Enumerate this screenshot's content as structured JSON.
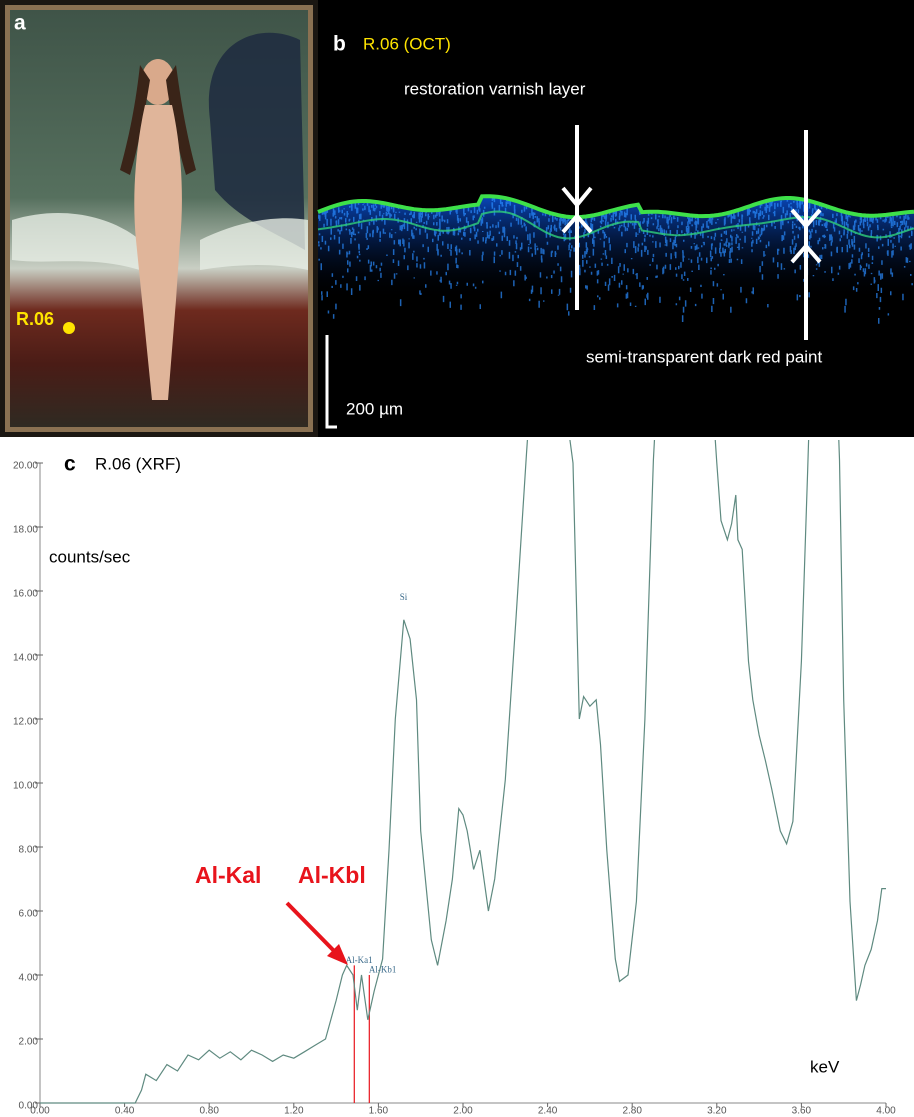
{
  "panel_a": {
    "label": "a",
    "marker_label": "R.06"
  },
  "panel_b": {
    "label": "b",
    "title": "R.06 (OCT)",
    "annotations": [
      "restoration varnish layer",
      "semi-transparent dark red paint"
    ],
    "scale_bar": "200 µm"
  },
  "chart_data": {
    "type": "line",
    "panel_label": "c",
    "title": "R.06 (XRF)",
    "y_label": "counts/sec",
    "x_label": "keV",
    "color": "#5f8a80",
    "x": [
      0,
      0.4,
      0.45,
      0.48,
      0.5,
      0.55,
      0.6,
      0.65,
      0.7,
      0.75,
      0.8,
      0.85,
      0.9,
      0.95,
      1.0,
      1.05,
      1.1,
      1.15,
      1.2,
      1.25,
      1.3,
      1.35,
      1.4,
      1.43,
      1.45,
      1.48,
      1.5,
      1.52,
      1.55,
      1.58,
      1.62,
      1.65,
      1.68,
      1.72,
      1.75,
      1.78,
      1.8,
      1.85,
      1.88,
      1.92,
      1.95,
      1.98,
      2.0,
      2.02,
      2.05,
      2.08,
      2.12,
      2.15,
      2.2,
      2.25,
      2.3,
      2.38,
      2.48,
      2.52,
      2.55,
      2.57,
      2.6,
      2.63,
      2.65,
      2.68,
      2.72,
      2.74,
      2.78,
      2.82,
      2.86,
      2.9,
      2.98,
      3.1,
      3.2,
      3.22,
      3.25,
      3.27,
      3.29,
      3.3,
      3.32,
      3.35,
      3.37,
      3.4,
      3.43,
      3.46,
      3.5,
      3.53,
      3.56,
      3.6,
      3.63,
      3.7,
      3.78,
      3.8,
      3.83,
      3.86,
      3.88,
      3.9,
      3.93,
      3.96,
      3.98,
      4.0
    ],
    "values": [
      0,
      0,
      0,
      0.4,
      0.9,
      0.7,
      1.2,
      1.0,
      1.5,
      1.35,
      1.65,
      1.4,
      1.6,
      1.35,
      1.65,
      1.5,
      1.3,
      1.5,
      1.4,
      1.6,
      1.8,
      2.0,
      3.2,
      4.0,
      4.3,
      4.0,
      2.9,
      4.0,
      2.6,
      3.5,
      4.5,
      7.9,
      12.0,
      15.1,
      14.5,
      12.6,
      8.5,
      5.1,
      4.3,
      5.7,
      7.0,
      9.2,
      9.0,
      8.5,
      7.3,
      7.9,
      6.0,
      7.0,
      10.1,
      15.1,
      20.3,
      28,
      22,
      20,
      12.0,
      12.7,
      12.4,
      12.6,
      11.2,
      7.9,
      4.5,
      3.8,
      4.0,
      6.3,
      12.0,
      20.1,
      30,
      30,
      20,
      18.2,
      17.6,
      18.1,
      19.0,
      17.6,
      17.3,
      13.8,
      12.6,
      11.5,
      10.7,
      9.8,
      8.5,
      8.1,
      8.8,
      13.8,
      19.8,
      35,
      20.1,
      12.6,
      6.3,
      3.2,
      3.7,
      4.3,
      4.8,
      5.7,
      6.7,
      6.7
    ],
    "xlim": [
      0,
      4
    ],
    "ylim": [
      0,
      20
    ],
    "xticks": [
      {
        "value": 0,
        "label": "0.00"
      },
      {
        "value": 0.4,
        "label": "0.40"
      },
      {
        "value": 0.8,
        "label": "0.80"
      },
      {
        "value": 1.2,
        "label": "1.20"
      },
      {
        "value": 1.6,
        "label": "1.60"
      },
      {
        "value": 2.0,
        "label": "2.00"
      },
      {
        "value": 2.4,
        "label": "2.40"
      },
      {
        "value": 2.8,
        "label": "2.80"
      },
      {
        "value": 3.2,
        "label": "3.20"
      },
      {
        "value": 3.6,
        "label": "3.60"
      },
      {
        "value": 4.0,
        "label": "4.00"
      }
    ],
    "yticks": [
      {
        "value": 0,
        "label": "0.00"
      },
      {
        "value": 2,
        "label": "2.00"
      },
      {
        "value": 4,
        "label": "4.00"
      },
      {
        "value": 6,
        "label": "6.00"
      },
      {
        "value": 8,
        "label": "8.00"
      },
      {
        "value": 10,
        "label": "10.00"
      },
      {
        "value": 12,
        "label": "12.00"
      },
      {
        "value": 14,
        "label": "14.00"
      },
      {
        "value": 16,
        "label": "16.00"
      },
      {
        "value": 18,
        "label": "18.00"
      },
      {
        "value": 20,
        "label": "20.00"
      }
    ],
    "peak_labels": [
      "Si",
      "Al-Ka1",
      "Al-Kb1"
    ],
    "emission_lines": [
      {
        "x": 1.486,
        "y": 4.3
      },
      {
        "x": 1.557,
        "y": 4.0
      }
    ],
    "emission_color": "#e8141c",
    "callouts": [
      "Al-Kal",
      "Al-Kbl"
    ]
  }
}
